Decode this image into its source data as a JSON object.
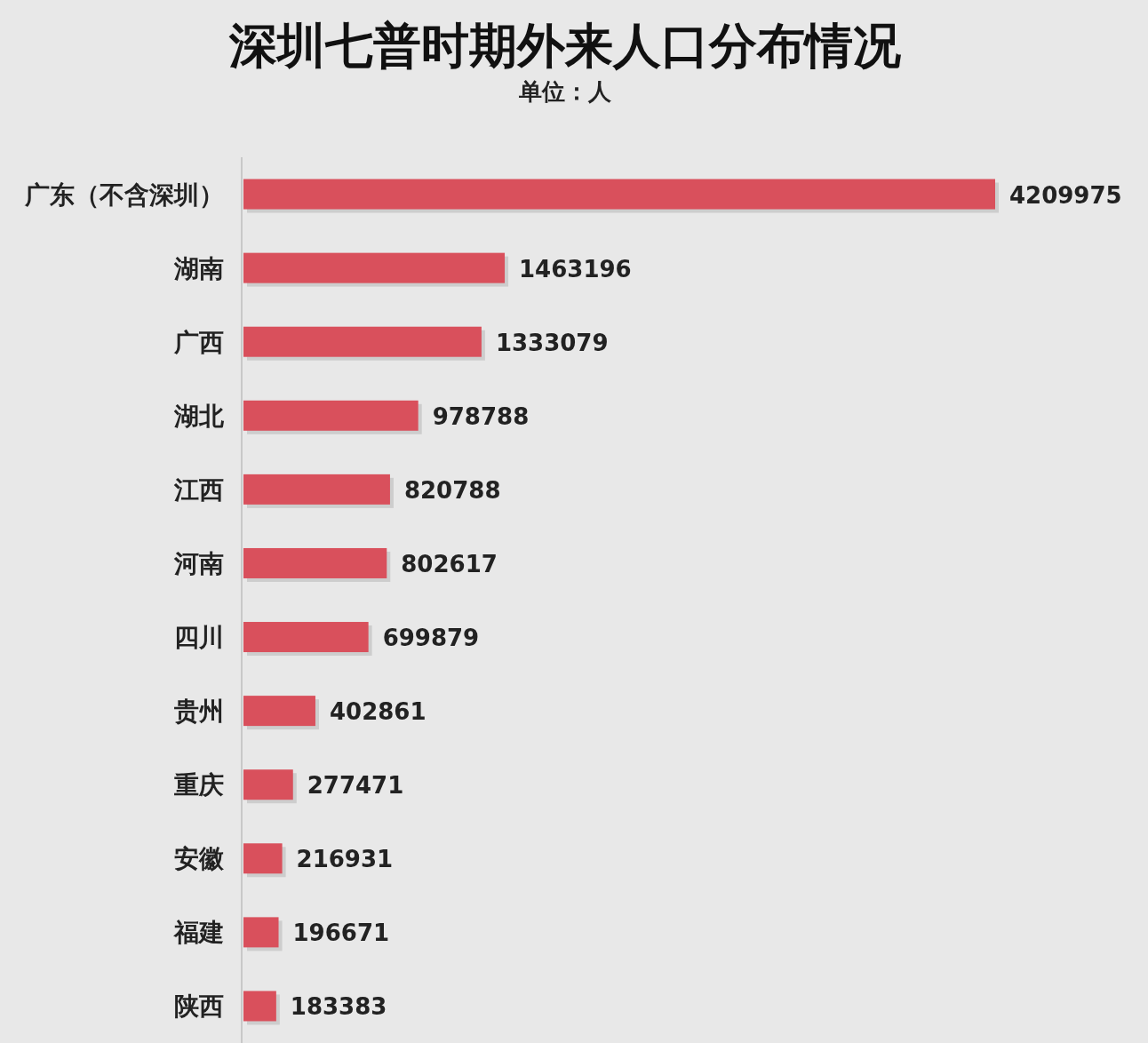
{
  "chart_data": {
    "type": "bar",
    "orientation": "horizontal",
    "title": "深圳七普时期外来人口分布情况",
    "subtitle": "单位：人",
    "categories": [
      "广东（不含深圳）",
      "湖南",
      "广西",
      "湖北",
      "江西",
      "河南",
      "四川",
      "贵州",
      "重庆",
      "安徽",
      "福建",
      "陕西"
    ],
    "values": [
      4209975,
      1463196,
      1333079,
      978788,
      820788,
      802617,
      699879,
      402861,
      277471,
      216931,
      196671,
      183383
    ],
    "color": "#d9505c",
    "data_labels": true
  }
}
